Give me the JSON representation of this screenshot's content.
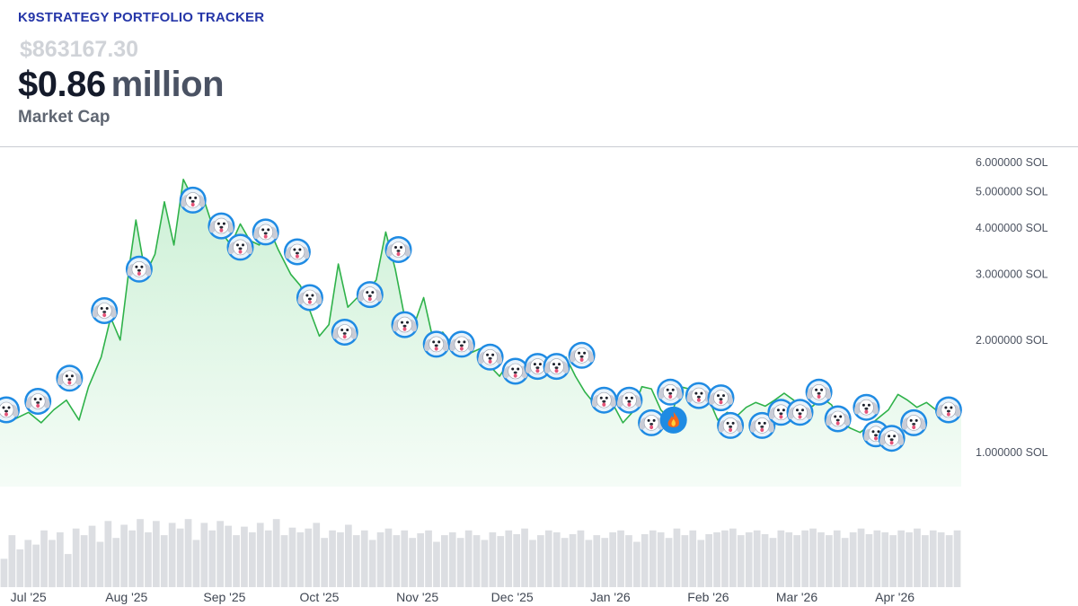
{
  "header": {
    "app_title": "K9STRATEGY PORTFOLIO TRACKER",
    "raw_value": "$863167.30",
    "big_value": "$0.86",
    "big_unit": "million",
    "metric_label": "Market Cap"
  },
  "colors": {
    "title": "#2536a8",
    "line": "#2fb24a",
    "area_fill": "#d7f3de",
    "volume_bar": "#dcdee2",
    "marker_ring": "#1f8be3"
  },
  "chart_data": {
    "type": "area",
    "y_scale": "log",
    "y_unit": "SOL",
    "y_ticks": [
      {
        "value": 1,
        "label": "1.000000 SOL"
      },
      {
        "value": 2,
        "label": "2.000000 SOL"
      },
      {
        "value": 3,
        "label": "3.000000 SOL"
      },
      {
        "value": 4,
        "label": "4.000000 SOL"
      },
      {
        "value": 5,
        "label": "5.000000 SOL"
      },
      {
        "value": 6,
        "label": "6.000000 SOL"
      }
    ],
    "ylim": [
      0.8,
      6.3
    ],
    "x_ticks": [
      {
        "date": "2025-07-01",
        "label": "Jul '25"
      },
      {
        "date": "2025-08-01",
        "label": "Aug '25"
      },
      {
        "date": "2025-09-01",
        "label": "Sep '25"
      },
      {
        "date": "2025-10-01",
        "label": "Oct '25"
      },
      {
        "date": "2025-11-01",
        "label": "Nov '25"
      },
      {
        "date": "2025-12-01",
        "label": "Dec '25"
      },
      {
        "date": "2026-01-01",
        "label": "Jan '26"
      },
      {
        "date": "2026-02-01",
        "label": "Feb '26"
      },
      {
        "date": "2026-03-01",
        "label": "Mar '26"
      },
      {
        "date": "2026-04-01",
        "label": "Apr '26"
      }
    ],
    "xlim": [
      "2025-06-22",
      "2026-04-22"
    ],
    "series": [
      {
        "points": [
          [
            "2025-06-22",
            1.32
          ],
          [
            "2025-06-26",
            1.22
          ],
          [
            "2025-07-01",
            1.28
          ],
          [
            "2025-07-05",
            1.2
          ],
          [
            "2025-07-09",
            1.3
          ],
          [
            "2025-07-13",
            1.38
          ],
          [
            "2025-07-17",
            1.22
          ],
          [
            "2025-07-20",
            1.5
          ],
          [
            "2025-07-24",
            1.8
          ],
          [
            "2025-07-27",
            2.3
          ],
          [
            "2025-07-30",
            2.0
          ],
          [
            "2025-08-02",
            3.2
          ],
          [
            "2025-08-04",
            4.2
          ],
          [
            "2025-08-07",
            3.0
          ],
          [
            "2025-08-10",
            3.4
          ],
          [
            "2025-08-13",
            4.7
          ],
          [
            "2025-08-16",
            3.6
          ],
          [
            "2025-08-19",
            5.4
          ],
          [
            "2025-08-22",
            4.8
          ],
          [
            "2025-08-25",
            4.9
          ],
          [
            "2025-08-28",
            4.1
          ],
          [
            "2025-08-31",
            3.9
          ],
          [
            "2025-09-03",
            3.6
          ],
          [
            "2025-09-06",
            4.1
          ],
          [
            "2025-09-09",
            3.7
          ],
          [
            "2025-09-12",
            3.6
          ],
          [
            "2025-09-15",
            4.0
          ],
          [
            "2025-09-18",
            3.5
          ],
          [
            "2025-09-22",
            3.0
          ],
          [
            "2025-09-25",
            2.8
          ],
          [
            "2025-09-28",
            2.4
          ],
          [
            "2025-10-01",
            2.05
          ],
          [
            "2025-10-04",
            2.2
          ],
          [
            "2025-10-07",
            3.2
          ],
          [
            "2025-10-10",
            2.45
          ],
          [
            "2025-10-13",
            2.6
          ],
          [
            "2025-10-16",
            2.7
          ],
          [
            "2025-10-19",
            2.9
          ],
          [
            "2025-10-22",
            3.9
          ],
          [
            "2025-10-25",
            3.1
          ],
          [
            "2025-10-28",
            2.3
          ],
          [
            "2025-10-31",
            2.2
          ],
          [
            "2025-11-03",
            2.6
          ],
          [
            "2025-11-06",
            2.0
          ],
          [
            "2025-11-09",
            2.1
          ],
          [
            "2025-11-12",
            1.95
          ],
          [
            "2025-11-15",
            2.05
          ],
          [
            "2025-11-18",
            1.85
          ],
          [
            "2025-11-21",
            1.9
          ],
          [
            "2025-11-24",
            1.7
          ],
          [
            "2025-11-27",
            1.6
          ],
          [
            "2025-11-30",
            1.75
          ],
          [
            "2025-12-03",
            1.7
          ],
          [
            "2025-12-06",
            1.65
          ],
          [
            "2025-12-09",
            1.72
          ],
          [
            "2025-12-12",
            1.68
          ],
          [
            "2025-12-15",
            1.76
          ],
          [
            "2025-12-18",
            1.8
          ],
          [
            "2025-12-21",
            1.6
          ],
          [
            "2025-12-24",
            1.45
          ],
          [
            "2025-12-27",
            1.35
          ],
          [
            "2025-12-30",
            1.33
          ],
          [
            "2026-01-02",
            1.34
          ],
          [
            "2026-01-05",
            1.2
          ],
          [
            "2026-01-08",
            1.28
          ],
          [
            "2026-01-11",
            1.5
          ],
          [
            "2026-01-14",
            1.48
          ],
          [
            "2026-01-17",
            1.3
          ],
          [
            "2026-01-20",
            1.22
          ],
          [
            "2026-01-23",
            1.5
          ],
          [
            "2026-01-26",
            1.48
          ],
          [
            "2026-01-29",
            1.38
          ],
          [
            "2026-02-01",
            1.4
          ],
          [
            "2026-02-04",
            1.22
          ],
          [
            "2026-02-07",
            1.28
          ],
          [
            "2026-02-10",
            1.25
          ],
          [
            "2026-02-13",
            1.32
          ],
          [
            "2026-02-16",
            1.36
          ],
          [
            "2026-02-19",
            1.33
          ],
          [
            "2026-02-22",
            1.38
          ],
          [
            "2026-02-25",
            1.44
          ],
          [
            "2026-02-28",
            1.38
          ],
          [
            "2026-03-03",
            1.32
          ],
          [
            "2026-03-06",
            1.33
          ],
          [
            "2026-03-09",
            1.4
          ],
          [
            "2026-03-12",
            1.34
          ],
          [
            "2026-03-15",
            1.2
          ],
          [
            "2026-03-18",
            1.16
          ],
          [
            "2026-03-21",
            1.13
          ],
          [
            "2026-03-24",
            1.18
          ],
          [
            "2026-03-27",
            1.24
          ],
          [
            "2026-03-30",
            1.3
          ],
          [
            "2026-04-02",
            1.43
          ],
          [
            "2026-04-05",
            1.38
          ],
          [
            "2026-04-08",
            1.32
          ],
          [
            "2026-04-11",
            1.36
          ],
          [
            "2026-04-14",
            1.3
          ],
          [
            "2026-04-18",
            1.28
          ],
          [
            "2026-04-22",
            1.29
          ]
        ]
      }
    ],
    "markers": [
      {
        "date": "2025-06-24",
        "value": 1.3,
        "icon": "dog-face-icon"
      },
      {
        "date": "2025-07-04",
        "value": 1.37,
        "icon": "dog-face-icon"
      },
      {
        "date": "2025-07-14",
        "value": 1.58,
        "icon": "dog-face-icon"
      },
      {
        "date": "2025-07-25",
        "value": 2.4,
        "icon": "dog-face-icon"
      },
      {
        "date": "2025-08-05",
        "value": 3.1,
        "icon": "dog-face-icon"
      },
      {
        "date": "2025-08-22",
        "value": 4.75,
        "icon": "dog-face-icon"
      },
      {
        "date": "2025-08-31",
        "value": 4.05,
        "icon": "dog-face-icon"
      },
      {
        "date": "2025-09-06",
        "value": 3.55,
        "icon": "dog-face-icon"
      },
      {
        "date": "2025-09-14",
        "value": 3.9,
        "icon": "dog-face-icon"
      },
      {
        "date": "2025-09-24",
        "value": 3.45,
        "icon": "dog-face-icon"
      },
      {
        "date": "2025-09-28",
        "value": 2.6,
        "icon": "dog-face-icon"
      },
      {
        "date": "2025-10-09",
        "value": 2.1,
        "icon": "dog-face-icon"
      },
      {
        "date": "2025-10-17",
        "value": 2.65,
        "icon": "dog-face-icon"
      },
      {
        "date": "2025-10-26",
        "value": 3.5,
        "icon": "dog-face-icon"
      },
      {
        "date": "2025-10-28",
        "value": 2.2,
        "icon": "dog-face-icon"
      },
      {
        "date": "2025-11-07",
        "value": 1.95,
        "icon": "dog-face-icon"
      },
      {
        "date": "2025-11-15",
        "value": 1.95,
        "icon": "dog-face-icon"
      },
      {
        "date": "2025-11-24",
        "value": 1.8,
        "icon": "dog-face-icon"
      },
      {
        "date": "2025-12-02",
        "value": 1.65,
        "icon": "dog-face-icon"
      },
      {
        "date": "2025-12-09",
        "value": 1.7,
        "icon": "dog-face-icon"
      },
      {
        "date": "2025-12-15",
        "value": 1.7,
        "icon": "dog-face-icon"
      },
      {
        "date": "2025-12-23",
        "value": 1.82,
        "icon": "dog-face-icon"
      },
      {
        "date": "2025-12-30",
        "value": 1.38,
        "icon": "dog-face-icon"
      },
      {
        "date": "2026-01-07",
        "value": 1.38,
        "icon": "dog-face-icon"
      },
      {
        "date": "2026-01-14",
        "value": 1.2,
        "icon": "dog-face-icon"
      },
      {
        "date": "2026-01-20",
        "value": 1.45,
        "icon": "dog-face-icon"
      },
      {
        "date": "2026-01-21",
        "value": 1.22,
        "icon": "fire-icon"
      },
      {
        "date": "2026-01-29",
        "value": 1.42,
        "icon": "dog-face-icon"
      },
      {
        "date": "2026-02-05",
        "value": 1.4,
        "icon": "dog-face-icon"
      },
      {
        "date": "2026-02-08",
        "value": 1.18,
        "icon": "dog-face-icon"
      },
      {
        "date": "2026-02-18",
        "value": 1.18,
        "icon": "dog-face-icon"
      },
      {
        "date": "2026-02-24",
        "value": 1.28,
        "icon": "dog-face-icon"
      },
      {
        "date": "2026-03-02",
        "value": 1.28,
        "icon": "dog-face-icon"
      },
      {
        "date": "2026-03-08",
        "value": 1.45,
        "icon": "dog-face-icon"
      },
      {
        "date": "2026-03-14",
        "value": 1.23,
        "icon": "dog-face-icon"
      },
      {
        "date": "2026-03-23",
        "value": 1.32,
        "icon": "dog-face-icon"
      },
      {
        "date": "2026-03-26",
        "value": 1.12,
        "icon": "dog-face-icon"
      },
      {
        "date": "2026-03-31",
        "value": 1.09,
        "icon": "dog-face-icon"
      },
      {
        "date": "2026-04-07",
        "value": 1.2,
        "icon": "dog-face-icon"
      },
      {
        "date": "2026-04-18",
        "value": 1.3,
        "icon": "dog-face-icon"
      }
    ],
    "volume": {
      "visible": true,
      "values": [
        0.3,
        0.55,
        0.4,
        0.5,
        0.45,
        0.6,
        0.5,
        0.58,
        0.35,
        0.62,
        0.55,
        0.65,
        0.48,
        0.7,
        0.52,
        0.66,
        0.6,
        0.72,
        0.58,
        0.7,
        0.55,
        0.68,
        0.62,
        0.72,
        0.5,
        0.68,
        0.6,
        0.7,
        0.65,
        0.55,
        0.64,
        0.58,
        0.68,
        0.6,
        0.72,
        0.55,
        0.63,
        0.58,
        0.62,
        0.68,
        0.52,
        0.6,
        0.58,
        0.66,
        0.55,
        0.6,
        0.5,
        0.58,
        0.62,
        0.55,
        0.6,
        0.52,
        0.57,
        0.6,
        0.48,
        0.55,
        0.58,
        0.52,
        0.6,
        0.55,
        0.5,
        0.58,
        0.54,
        0.6,
        0.56,
        0.62,
        0.5,
        0.55,
        0.6,
        0.58,
        0.52,
        0.56,
        0.6,
        0.5,
        0.55,
        0.52,
        0.58,
        0.6,
        0.55,
        0.48,
        0.56,
        0.6,
        0.58,
        0.52,
        0.62,
        0.55,
        0.6,
        0.5,
        0.56,
        0.58,
        0.6,
        0.62,
        0.55,
        0.58,
        0.6,
        0.56,
        0.52,
        0.6,
        0.58,
        0.55,
        0.6,
        0.62,
        0.58,
        0.55,
        0.6,
        0.52,
        0.58,
        0.62,
        0.56,
        0.6,
        0.58,
        0.55,
        0.6,
        0.58,
        0.62,
        0.55,
        0.6,
        0.58,
        0.55,
        0.6
      ]
    }
  }
}
